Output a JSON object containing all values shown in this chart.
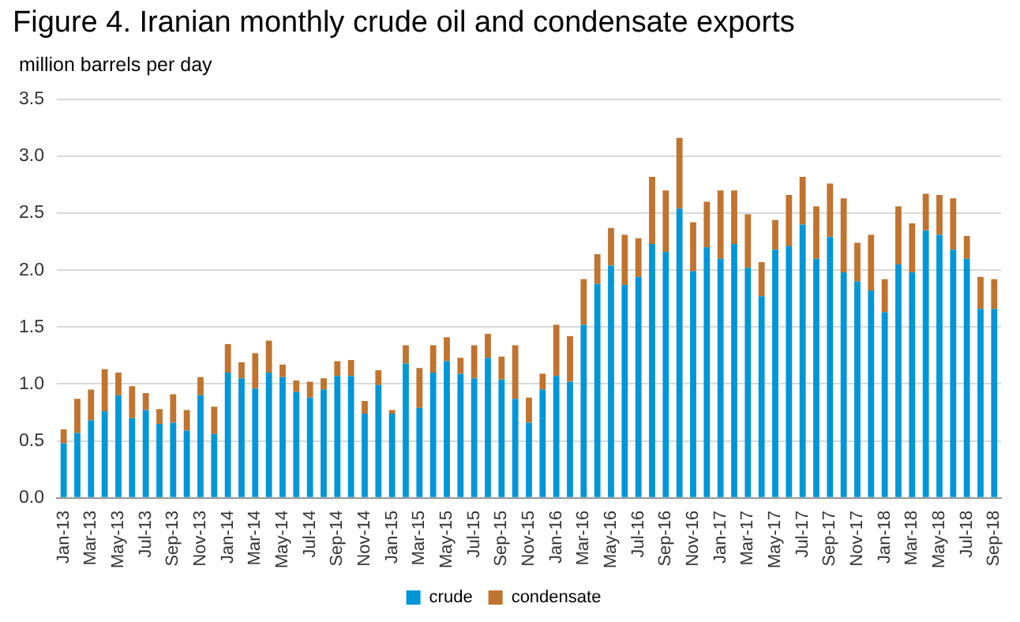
{
  "chart_data": {
    "type": "bar",
    "stacked": true,
    "title": "Figure 4. Iranian monthly crude oil and condensate exports",
    "ylabel": "million barrels per day",
    "categories": [
      "Jan-13",
      null,
      "Mar-13",
      null,
      "May-13",
      null,
      "Jul-13",
      null,
      "Sep-13",
      null,
      "Nov-13",
      null,
      "Jan-14",
      null,
      "Mar-14",
      null,
      "May-14",
      null,
      "Jul-14",
      null,
      "Sep-14",
      null,
      "Nov-14",
      null,
      "Jan-15",
      null,
      "Mar-15",
      null,
      "May-15",
      null,
      "Jul-15",
      null,
      "Sep-15",
      null,
      "Nov-15",
      null,
      "Jan-16",
      null,
      "Mar-16",
      null,
      "May-16",
      null,
      "Jul-16",
      null,
      "Sep-16",
      null,
      "Nov-16",
      null,
      "Jan-17",
      null,
      "Mar-17",
      null,
      "May-17",
      null,
      "Jul-17",
      null,
      "Sep-17",
      null,
      "Nov-17",
      null,
      "Jan-18",
      null,
      "Mar-18",
      null,
      "May-18",
      null,
      "Jul-18",
      null,
      "Sep-18"
    ],
    "series": [
      {
        "name": "crude",
        "color": "#0096d7",
        "values": [
          0.48,
          0.57,
          0.68,
          0.76,
          0.9,
          0.7,
          0.77,
          0.65,
          0.66,
          0.59,
          0.9,
          0.56,
          1.1,
          1.05,
          0.96,
          1.1,
          1.06,
          0.93,
          0.88,
          0.95,
          1.07,
          1.07,
          0.74,
          0.99,
          0.74,
          1.18,
          0.79,
          1.1,
          1.2,
          1.09,
          1.05,
          1.23,
          1.04,
          0.87,
          0.66,
          0.95,
          1.07,
          1.02,
          1.52,
          1.88,
          2.04,
          1.87,
          1.94,
          2.23,
          2.16,
          2.54,
          1.99,
          2.2,
          2.1,
          2.23,
          2.02,
          1.77,
          2.18,
          2.21,
          2.4,
          2.1,
          2.29,
          1.98,
          1.9,
          1.82,
          1.63,
          2.05,
          1.98,
          2.35,
          2.31,
          2.18,
          2.1,
          1.66,
          1.66
        ]
      },
      {
        "name": "condensate",
        "color": "#c0742f",
        "values": [
          0.12,
          0.3,
          0.27,
          0.37,
          0.2,
          0.28,
          0.15,
          0.13,
          0.25,
          0.18,
          0.16,
          0.24,
          0.25,
          0.14,
          0.31,
          0.28,
          0.11,
          0.1,
          0.14,
          0.1,
          0.13,
          0.14,
          0.11,
          0.13,
          0.03,
          0.16,
          0.35,
          0.24,
          0.21,
          0.14,
          0.29,
          0.21,
          0.2,
          0.47,
          0.22,
          0.14,
          0.45,
          0.4,
          0.4,
          0.26,
          0.33,
          0.44,
          0.34,
          0.59,
          0.54,
          0.62,
          0.43,
          0.4,
          0.6,
          0.47,
          0.47,
          0.3,
          0.26,
          0.45,
          0.42,
          0.46,
          0.47,
          0.65,
          0.34,
          0.49,
          0.29,
          0.51,
          0.43,
          0.32,
          0.35,
          0.45,
          0.2,
          0.28,
          0.26
        ]
      }
    ],
    "ylim": [
      0,
      3.5
    ],
    "yticks": [
      {
        "value": 0,
        "label": "0.0"
      },
      {
        "value": 0.5,
        "label": "0.5"
      },
      {
        "value": 1,
        "label": "1.0"
      },
      {
        "value": 1.5,
        "label": "1.5"
      },
      {
        "value": 2,
        "label": "2.0"
      },
      {
        "value": 2.5,
        "label": "2.5"
      },
      {
        "value": 3,
        "label": "3.0"
      },
      {
        "value": 3.5,
        "label": "3.5"
      }
    ],
    "grid": "y",
    "legend": "bottom"
  }
}
